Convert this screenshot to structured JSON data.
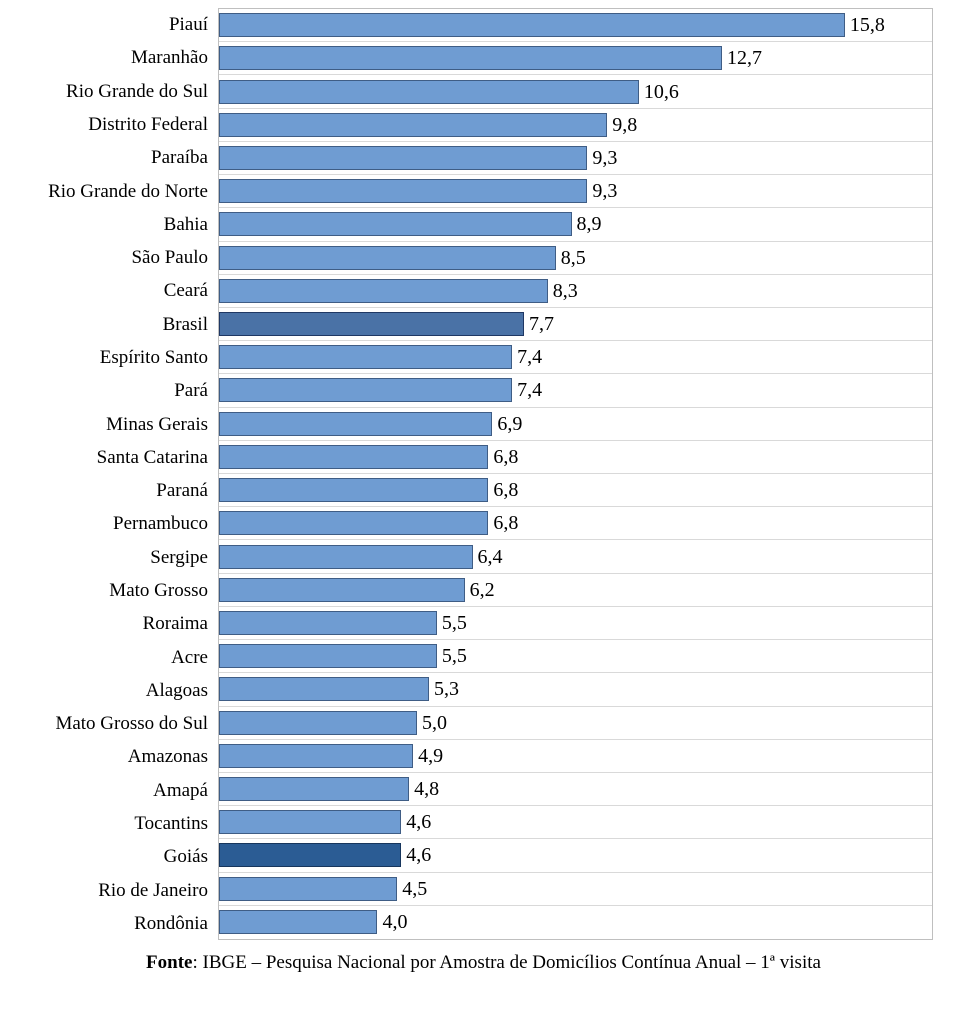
{
  "chart_data": {
    "type": "bar",
    "orientation": "horizontal",
    "title": "",
    "xlabel": "",
    "ylabel": "",
    "xlim": [
      0,
      18
    ],
    "grid": true,
    "decimal_separator": ",",
    "categories": [
      "Piauí",
      "Maranhão",
      "Rio Grande do Sul",
      "Distrito Federal",
      "Paraíba",
      "Rio Grande do Norte",
      "Bahia",
      "São Paulo",
      "Ceará",
      "Brasil",
      "Espírito Santo",
      "Pará",
      "Minas Gerais",
      "Santa Catarina",
      "Paraná",
      "Pernambuco",
      "Sergipe",
      "Mato Grosso",
      "Roraima",
      "Acre",
      "Alagoas",
      "Mato Grosso do Sul",
      "Amazonas",
      "Amapá",
      "Tocantins",
      "Goiás",
      "Rio de Janeiro",
      "Rondônia"
    ],
    "values": [
      15.8,
      12.7,
      10.6,
      9.8,
      9.3,
      9.3,
      8.9,
      8.5,
      8.3,
      7.7,
      7.4,
      7.4,
      6.9,
      6.8,
      6.8,
      6.8,
      6.4,
      6.2,
      5.5,
      5.5,
      5.3,
      5.0,
      4.9,
      4.8,
      4.6,
      4.6,
      4.5,
      4.0
    ],
    "value_labels": [
      "15,8",
      "12,7",
      "10,6",
      "9,8",
      "9,3",
      "9,3",
      "8,9",
      "8,5",
      "8,3",
      "7,7",
      "7,4",
      "7,4",
      "6,9",
      "6,8",
      "6,8",
      "6,8",
      "6,4",
      "6,2",
      "5,5",
      "5,5",
      "5,3",
      "5,0",
      "4,9",
      "4,8",
      "4,6",
      "4,6",
      "4,5",
      "4,0"
    ],
    "bar_variants": [
      "default",
      "default",
      "default",
      "default",
      "default",
      "default",
      "default",
      "default",
      "default",
      "brasil",
      "default",
      "default",
      "default",
      "default",
      "default",
      "default",
      "default",
      "default",
      "default",
      "default",
      "default",
      "default",
      "default",
      "default",
      "default",
      "goias",
      "default",
      "default"
    ],
    "colors": {
      "bar_fill": "#6F9CD2",
      "bar_border": "#3F5D85",
      "brasil_fill": "#4A72A6",
      "brasil_border": "#1F3864",
      "goias_fill": "#2B5C94",
      "goias_border": "#17365D",
      "gridline": "#D9D9D9",
      "plot_border": "#BFBFBF"
    },
    "legend": null
  },
  "footer": {
    "source_label": "Fonte",
    "source_text": ": IBGE – Pesquisa Nacional por Amostra de Domicílios Contínua Anual – 1ª visita"
  }
}
